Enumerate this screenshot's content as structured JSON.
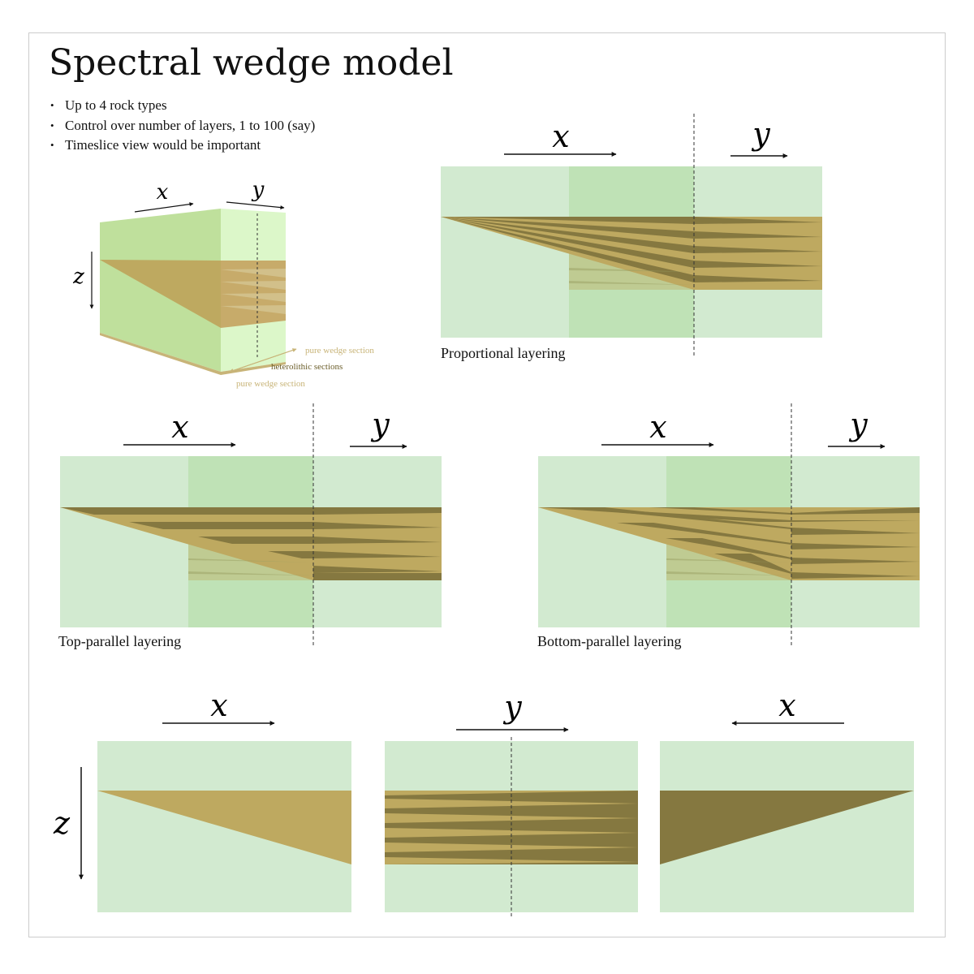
{
  "title": "Spectral wedge model",
  "bullets": [
    "Up to 4 rock types",
    "Control over number of layers, 1 to 100 (say)",
    "Timeslice view would be important"
  ],
  "axis_labels": {
    "x": "x",
    "y": "y",
    "z": "z"
  },
  "block_annotations": {
    "pure_top": "pure wedge section",
    "heterolithic": "heterolithic sections",
    "pure_bottom": "pure wedge section"
  },
  "panels": {
    "proportional": {
      "caption": "Proportional layering"
    },
    "top_parallel": {
      "caption": "Top-parallel layering"
    },
    "bottom_parallel": {
      "caption": "Bottom-parallel layering"
    }
  },
  "colors": {
    "background_green": "#d2ead0",
    "highlight_green": "#bfe2b6",
    "wedge_light": "#bea960",
    "wedge_dark": "#857840",
    "block_face": "#bfe09c",
    "block_side": "#dcf7c9",
    "annotation_tan": "#c8b478",
    "annotation_dark": "#6b5e2a"
  }
}
